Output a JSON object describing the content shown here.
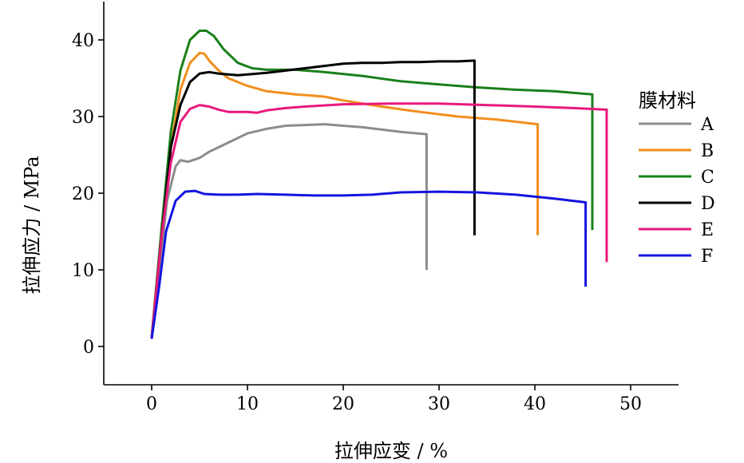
{
  "chart_data": {
    "type": "line",
    "xlabel": "拉伸应变 / %",
    "ylabel": "拉伸应力 / MPa",
    "xlim": [
      -5,
      55
    ],
    "ylim": [
      -5,
      45
    ],
    "x_ticks": [
      0,
      10,
      20,
      30,
      40,
      50
    ],
    "y_ticks": [
      0,
      10,
      20,
      30,
      40
    ],
    "grid": false,
    "legend_title": "膜材料",
    "legend_position": "right",
    "series": [
      {
        "name": "A",
        "color": "#8c8c8c",
        "points": [
          [
            0,
            1
          ],
          [
            0.8,
            10
          ],
          [
            1.6,
            19
          ],
          [
            2.5,
            23.5
          ],
          [
            3,
            24.3
          ],
          [
            3.8,
            24.1
          ],
          [
            5,
            24.6
          ],
          [
            6,
            25.4
          ],
          [
            7,
            26
          ],
          [
            8,
            26.6
          ],
          [
            9,
            27.2
          ],
          [
            10,
            27.8
          ],
          [
            12,
            28.4
          ],
          [
            14,
            28.8
          ],
          [
            16,
            28.9
          ],
          [
            18,
            29
          ],
          [
            20,
            28.8
          ],
          [
            22,
            28.6
          ],
          [
            24,
            28.3
          ],
          [
            26,
            28
          ],
          [
            28.7,
            27.7
          ],
          [
            28.7,
            10
          ]
        ]
      },
      {
        "name": "B",
        "color": "#f28e1c",
        "points": [
          [
            0,
            1.2
          ],
          [
            1,
            14
          ],
          [
            2,
            26
          ],
          [
            3,
            33.5
          ],
          [
            4,
            37
          ],
          [
            5,
            38.3
          ],
          [
            5.5,
            38.2
          ],
          [
            6,
            37.3
          ],
          [
            7,
            36
          ],
          [
            8,
            35
          ],
          [
            10,
            34
          ],
          [
            12,
            33.3
          ],
          [
            15,
            32.9
          ],
          [
            18,
            32.6
          ],
          [
            20,
            32.1
          ],
          [
            24,
            31.3
          ],
          [
            28,
            30.6
          ],
          [
            32,
            30
          ],
          [
            36,
            29.6
          ],
          [
            40.3,
            29
          ],
          [
            40.3,
            14.5
          ]
        ]
      },
      {
        "name": "C",
        "color": "#1a801a",
        "points": [
          [
            0,
            1.2
          ],
          [
            1,
            15
          ],
          [
            2,
            28
          ],
          [
            3,
            36
          ],
          [
            4,
            40
          ],
          [
            5,
            41.2
          ],
          [
            5.7,
            41.2
          ],
          [
            6.5,
            40.5
          ],
          [
            7.5,
            38.8
          ],
          [
            9,
            37
          ],
          [
            10.5,
            36.3
          ],
          [
            12,
            36.1
          ],
          [
            15,
            36.1
          ],
          [
            18,
            35.8
          ],
          [
            22,
            35.3
          ],
          [
            26,
            34.6
          ],
          [
            30,
            34.2
          ],
          [
            34,
            33.8
          ],
          [
            38,
            33.5
          ],
          [
            42,
            33.3
          ],
          [
            46,
            32.9
          ],
          [
            46,
            15.2
          ]
        ]
      },
      {
        "name": "D",
        "color": "#000000",
        "points": [
          [
            0,
            1.1
          ],
          [
            1,
            14
          ],
          [
            2,
            26
          ],
          [
            3,
            31.5
          ],
          [
            4,
            34.5
          ],
          [
            5,
            35.6
          ],
          [
            6,
            35.8
          ],
          [
            7,
            35.6
          ],
          [
            8,
            35.5
          ],
          [
            9,
            35.4
          ],
          [
            10,
            35.5
          ],
          [
            12,
            35.7
          ],
          [
            14,
            36
          ],
          [
            16,
            36.3
          ],
          [
            18,
            36.6
          ],
          [
            20,
            36.9
          ],
          [
            22,
            37
          ],
          [
            24,
            37
          ],
          [
            26,
            37.1
          ],
          [
            28,
            37.1
          ],
          [
            30,
            37.2
          ],
          [
            32,
            37.2
          ],
          [
            33.7,
            37.3
          ],
          [
            33.7,
            14.5
          ]
        ]
      },
      {
        "name": "E",
        "color": "#e8197c",
        "points": [
          [
            0,
            1.1
          ],
          [
            1,
            14
          ],
          [
            2,
            24
          ],
          [
            3,
            29.3
          ],
          [
            4,
            31
          ],
          [
            5,
            31.5
          ],
          [
            6,
            31.3
          ],
          [
            7,
            30.9
          ],
          [
            8,
            30.6
          ],
          [
            10,
            30.6
          ],
          [
            11,
            30.5
          ],
          [
            12,
            30.8
          ],
          [
            14,
            31.1
          ],
          [
            16,
            31.3
          ],
          [
            20,
            31.6
          ],
          [
            25,
            31.7
          ],
          [
            30,
            31.7
          ],
          [
            35,
            31.5
          ],
          [
            40,
            31.3
          ],
          [
            44,
            31.1
          ],
          [
            47.5,
            30.9
          ],
          [
            47.5,
            11
          ]
        ]
      },
      {
        "name": "F",
        "color": "#1414e0",
        "points": [
          [
            0,
            1
          ],
          [
            0.8,
            8
          ],
          [
            1.5,
            15
          ],
          [
            2.5,
            19
          ],
          [
            3.5,
            20.2
          ],
          [
            4.5,
            20.3
          ],
          [
            5.5,
            19.9
          ],
          [
            7,
            19.8
          ],
          [
            9,
            19.8
          ],
          [
            11,
            19.9
          ],
          [
            14,
            19.8
          ],
          [
            17,
            19.7
          ],
          [
            20,
            19.7
          ],
          [
            23,
            19.8
          ],
          [
            26,
            20.1
          ],
          [
            30,
            20.2
          ],
          [
            34,
            20.1
          ],
          [
            38,
            19.8
          ],
          [
            42,
            19.3
          ],
          [
            45.3,
            18.8
          ],
          [
            45.3,
            7.8
          ]
        ]
      }
    ]
  }
}
